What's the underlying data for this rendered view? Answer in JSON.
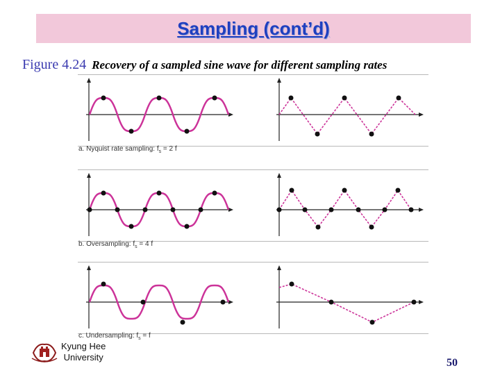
{
  "slide": {
    "title": "Sampling (cont’d)",
    "figure_number": "Figure 4.24",
    "figure_caption": "Recovery of a sampled sine wave for different sampling rates",
    "page_number": "50"
  },
  "institution": {
    "line1": "Kyung Hee",
    "line2": "University"
  },
  "panels": [
    {
      "label_prefix": "a. Nyquist rate sampling: f",
      "label_sub": "s",
      "label_suffix": " = 2 f"
    },
    {
      "label_prefix": "b. Oversampling: f",
      "label_sub": "s",
      "label_suffix": " = 4 f"
    },
    {
      "label_prefix": "c. Undersampling: f",
      "label_sub": "s",
      "label_suffix": " = f"
    }
  ],
  "colors": {
    "wave": "#cc3399",
    "sample_dot": "#111111",
    "title_bar": "#f2c8da",
    "title_text": "#1f3fbf"
  }
}
